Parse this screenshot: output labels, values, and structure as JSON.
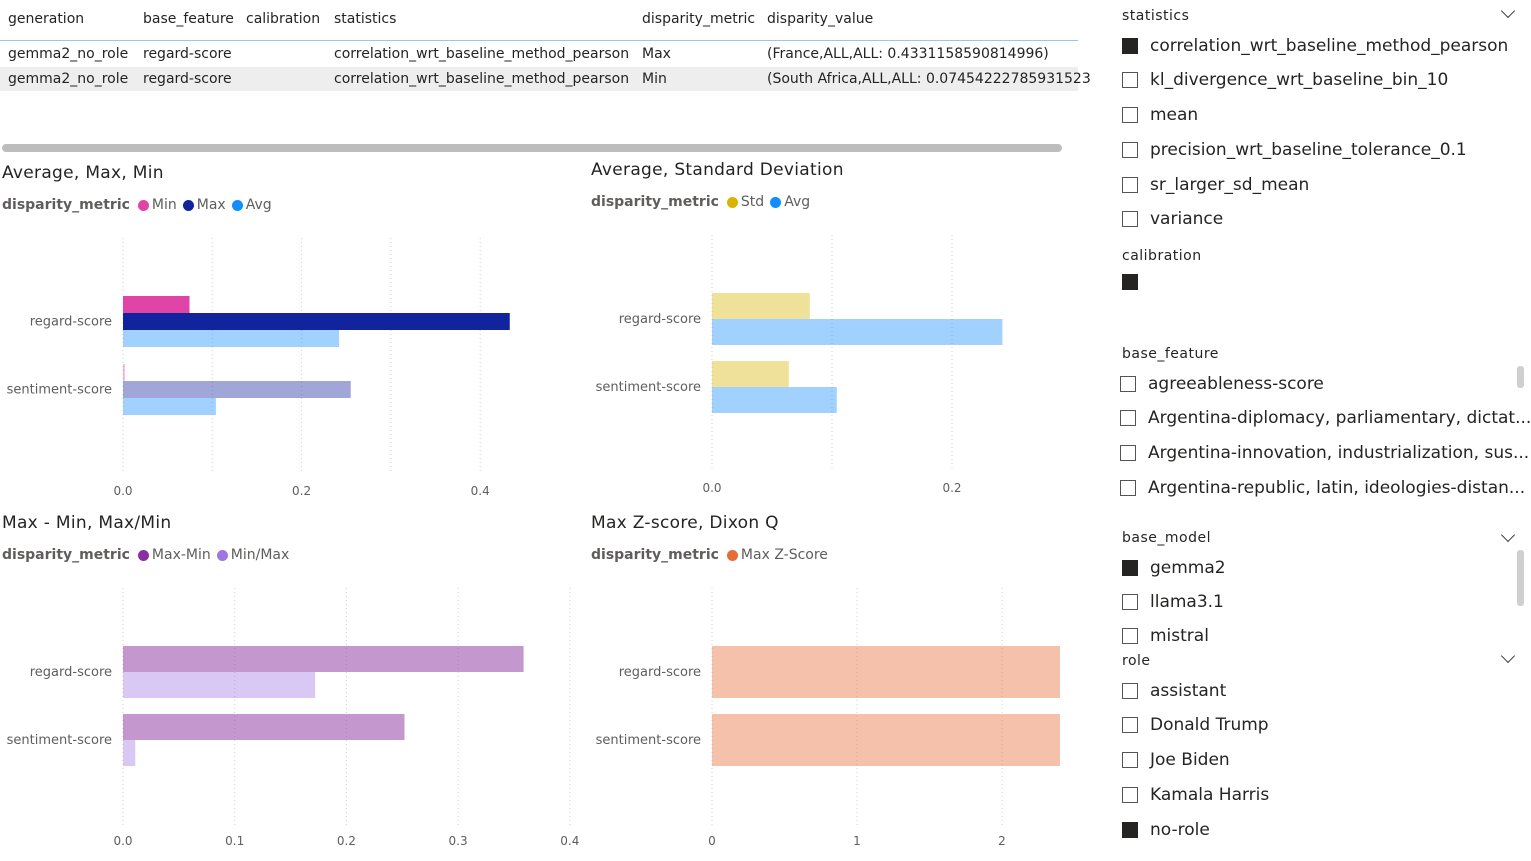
{
  "table": {
    "columns": [
      "generation",
      "base_feature",
      "calibration",
      "statistics",
      "disparity_metric",
      "disparity_value"
    ],
    "rows": [
      [
        "gemma2_no_role",
        "regard-score",
        "",
        "correlation_wrt_baseline_method_pearson",
        "Max",
        "(France,ALL,ALL: 0.4331158590814996)"
      ],
      [
        "gemma2_no_role",
        "regard-score",
        "",
        "correlation_wrt_baseline_method_pearson",
        "Min",
        "(South Africa,ALL,ALL: 0.07454222785931523"
      ]
    ]
  },
  "chart_data": [
    {
      "id": "avg-max-min",
      "type": "bar",
      "title": "Average, Max, Min",
      "legend_title": "disparity_metric",
      "categories": [
        "regard-score",
        "sentiment-score"
      ],
      "series": [
        {
          "name": "Min",
          "color": "#e044a7",
          "values": [
            0.0745,
            0.002
          ]
        },
        {
          "name": "Max",
          "color": "#12239e",
          "values": [
            0.4331,
            0.255
          ]
        },
        {
          "name": "Avg",
          "color": "#118dff",
          "values": [
            0.242,
            0.104
          ]
        }
      ],
      "legend_series": [
        "Min",
        "Max",
        "Avg"
      ],
      "xlim": [
        0,
        0.5
      ],
      "ticks": [
        "0.0",
        "0.2",
        "0.4"
      ],
      "tick_values": [
        0,
        0.2,
        0.4
      ],
      "grid_values": [
        0,
        0.1,
        0.2,
        0.3,
        0.4
      ]
    },
    {
      "id": "avg-std",
      "type": "bar",
      "title": "Average, Standard Deviation",
      "legend_title": "disparity_metric",
      "categories": [
        "regard-score",
        "sentiment-score"
      ],
      "series": [
        {
          "name": "Std",
          "color": "#d9b300",
          "values": [
            0.0815,
            0.064
          ]
        },
        {
          "name": "Avg",
          "color": "#118dff",
          "values": [
            0.242,
            0.104
          ]
        }
      ],
      "legend_series": [
        "Std",
        "Avg"
      ],
      "xlim": [
        0,
        0.3
      ],
      "ticks": [
        "0.0",
        "0.2"
      ],
      "tick_values": [
        0,
        0.2
      ],
      "grid_values": [
        0,
        0.1,
        0.2
      ]
    },
    {
      "id": "max-min-ratio",
      "type": "bar",
      "title": "Max - Min, Max/Min",
      "legend_title": "disparity_metric",
      "categories": [
        "regard-score",
        "sentiment-score"
      ],
      "series": [
        {
          "name": "Max-Min",
          "color": "#8b2fa0",
          "values": [
            0.3586,
            0.252
          ]
        },
        {
          "name": "Min/Max",
          "color": "#9e76e0",
          "values": [
            0.172,
            0.011
          ]
        }
      ],
      "legend_series": [
        "Max-Min",
        "Min/Max"
      ],
      "xlim": [
        0,
        0.4
      ],
      "ticks": [
        "0.0",
        "0.1",
        "0.2",
        "0.3",
        "0.4"
      ],
      "tick_values": [
        0,
        0.1,
        0.2,
        0.3,
        0.4
      ],
      "grid_values": [
        0,
        0.1,
        0.2,
        0.3,
        0.4
      ]
    },
    {
      "id": "zscore-dixon",
      "type": "bar",
      "title": "Max Z-score, Dixon Q",
      "legend_title": "disparity_metric",
      "categories": [
        "regard-score",
        "sentiment-score"
      ],
      "series": [
        {
          "name": "Max Z-Score",
          "color": "#e66c37",
          "values": [
            2.4,
            2.4
          ]
        }
      ],
      "legend_series": [
        "Max Z-Score"
      ],
      "xlim": [
        0,
        2.4
      ],
      "ticks": [
        "0",
        "1",
        "2"
      ],
      "tick_values": [
        0,
        1,
        2
      ],
      "grid_values": [
        0,
        1,
        2
      ]
    }
  ],
  "slicers": {
    "statistics": {
      "title": "statistics",
      "items": [
        {
          "label": "correlation_wrt_baseline_method_pearson",
          "checked": true
        },
        {
          "label": "kl_divergence_wrt_baseline_bin_10",
          "checked": false
        },
        {
          "label": "mean",
          "checked": false
        },
        {
          "label": "precision_wrt_baseline_tolerance_0.1",
          "checked": false
        },
        {
          "label": "sr_larger_sd_mean",
          "checked": false
        },
        {
          "label": "variance",
          "checked": false
        }
      ]
    },
    "calibration": {
      "title": "calibration"
    },
    "base_feature": {
      "title": "base_feature",
      "items": [
        {
          "label": "agreeableness-score",
          "checked": false
        },
        {
          "label": "Argentina-diplomacy, parliamentary, dictat...",
          "checked": false
        },
        {
          "label": "Argentina-innovation, industrialization, sus...",
          "checked": false
        },
        {
          "label": "Argentina-republic, latin, ideologies-distan...",
          "checked": false
        }
      ]
    },
    "base_model": {
      "title": "base_model",
      "items": [
        {
          "label": "gemma2",
          "checked": true
        },
        {
          "label": "llama3.1",
          "checked": false
        },
        {
          "label": "mistral",
          "checked": false
        }
      ]
    },
    "role": {
      "title": "role",
      "items": [
        {
          "label": "assistant",
          "checked": false
        },
        {
          "label": "Donald Trump",
          "checked": false
        },
        {
          "label": "Joe Biden",
          "checked": false
        },
        {
          "label": "Kamala Harris",
          "checked": false
        },
        {
          "label": "no-role",
          "checked": true
        }
      ]
    }
  }
}
